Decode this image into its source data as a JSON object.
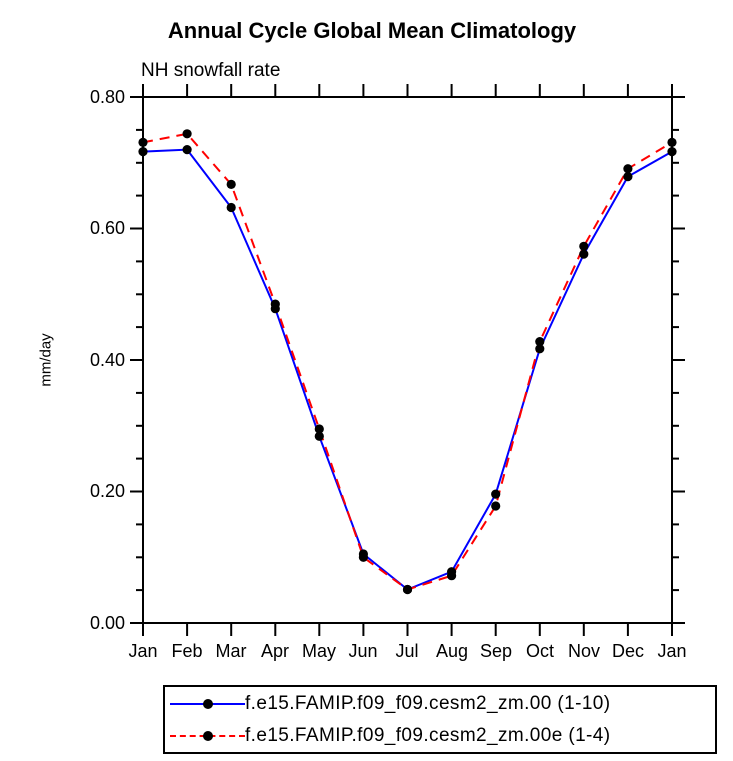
{
  "chart_data": {
    "type": "line",
    "title": "Annual Cycle Global Mean Climatology",
    "subtitle": "NH snowfall rate",
    "ylabel": "mm/day",
    "xlabel": "",
    "ylim": [
      0.0,
      0.8
    ],
    "ytick_values": [
      0.0,
      0.2,
      0.4,
      0.6,
      0.8
    ],
    "ytick_labels": [
      "0.00",
      "0.20",
      "0.40",
      "0.60",
      "0.80"
    ],
    "yminor_step": 0.05,
    "grid": false,
    "legend_position": "bottom",
    "frame": "box-with-outward-ticks",
    "categories": [
      "Jan",
      "Feb",
      "Mar",
      "Apr",
      "May",
      "Jun",
      "Jul",
      "Aug",
      "Sep",
      "Oct",
      "Nov",
      "Dec",
      "Jan"
    ],
    "series": [
      {
        "name": "f.e15.FAMIP.f09_f09.cesm2_zm.00 (1-10)",
        "color": "#0000ff",
        "style": "solid",
        "marker": "filled-circle",
        "marker_color": "#000000",
        "values": [
          0.717,
          0.72,
          0.632,
          0.478,
          0.284,
          0.105,
          0.051,
          0.078,
          0.196,
          0.417,
          0.561,
          0.679,
          0.717
        ]
      },
      {
        "name": "f.e15.FAMIP.f09_f09.cesm2_zm.00e (1-4)",
        "color": "#ff0000",
        "style": "dashed",
        "marker": "filled-circle",
        "marker_color": "#000000",
        "values": [
          0.731,
          0.744,
          0.667,
          0.485,
          0.295,
          0.1,
          0.051,
          0.072,
          0.178,
          0.428,
          0.573,
          0.691,
          0.731
        ]
      }
    ]
  }
}
